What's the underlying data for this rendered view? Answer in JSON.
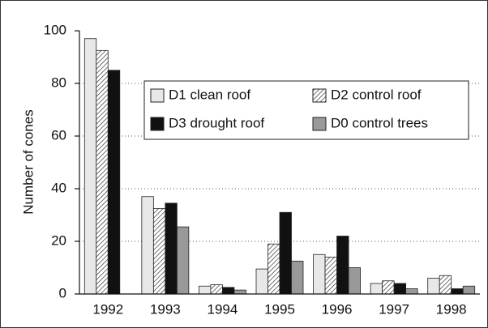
{
  "chart_data": {
    "type": "bar",
    "y_label": "Number of cones",
    "categories": [
      "1992",
      "1993",
      "1994",
      "1995",
      "1996",
      "1997",
      "1998"
    ],
    "series": [
      {
        "name": "D1 clean roof",
        "color": "#e8e8e8",
        "values": [
          97,
          37,
          3,
          9.5,
          15,
          4,
          6
        ]
      },
      {
        "name": "D2 control roof",
        "color": "#ffffff",
        "pattern": "hatch",
        "values": [
          92.5,
          32.5,
          3.5,
          19,
          14,
          5,
          7
        ]
      },
      {
        "name": "D3 drought roof",
        "color": "#111111",
        "values": [
          85,
          34.5,
          2.5,
          31,
          22,
          4,
          2
        ]
      },
      {
        "name": "D0 control trees",
        "color": "#999999",
        "values": [
          null,
          25.5,
          1.5,
          12.5,
          10,
          2,
          3
        ]
      }
    ],
    "ylim": [
      0,
      100
    ],
    "yticks": [
      0,
      20,
      40,
      60,
      80,
      100
    ],
    "grid": true
  }
}
